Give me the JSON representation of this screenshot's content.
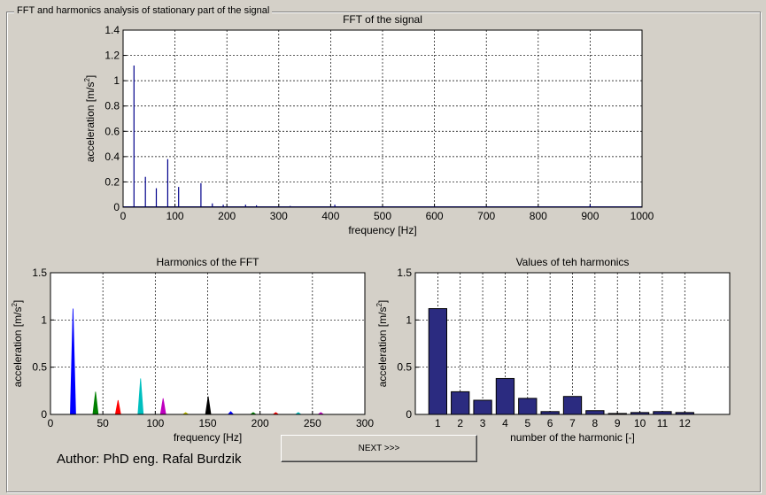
{
  "window": {
    "group_title": "FFT and harmonics analysis of stationary part of the signal",
    "author": "Author: PhD eng. Rafal Burdzik",
    "next_button": "NEXT >>>"
  },
  "chart_data": [
    {
      "type": "line",
      "title": "FFT of the signal",
      "xlabel": "frequency [Hz]",
      "ylabel": "acceleration [m/s",
      "ylabel_sup": "2",
      "ylabel_end": "]",
      "xlim": [
        0,
        1000
      ],
      "ylim": [
        0,
        1.4
      ],
      "xticks": [
        0,
        100,
        200,
        300,
        400,
        500,
        600,
        700,
        800,
        900,
        1000
      ],
      "yticks": [
        0,
        0.2,
        0.4,
        0.6,
        0.8,
        1,
        1.2,
        1.4
      ],
      "grid": true,
      "color": "#00008b",
      "peaks": [
        {
          "x": 21,
          "y": 1.12
        },
        {
          "x": 43,
          "y": 0.24
        },
        {
          "x": 64,
          "y": 0.15
        },
        {
          "x": 86,
          "y": 0.38
        },
        {
          "x": 107,
          "y": 0.16
        },
        {
          "x": 150,
          "y": 0.19
        },
        {
          "x": 172,
          "y": 0.03
        },
        {
          "x": 193,
          "y": 0.02
        },
        {
          "x": 236,
          "y": 0.02
        },
        {
          "x": 257,
          "y": 0.015
        },
        {
          "x": 322,
          "y": 0.01
        },
        {
          "x": 408,
          "y": 0.02
        },
        {
          "x": 900,
          "y": 0.02
        }
      ]
    },
    {
      "type": "line",
      "title": "Harmonics of the FFT",
      "xlabel": "frequency [Hz]",
      "ylabel": "acceleration [m/s",
      "ylabel_sup": "2",
      "ylabel_end": "]",
      "xlim": [
        0,
        300
      ],
      "ylim": [
        0,
        1.5
      ],
      "xticks": [
        0,
        50,
        100,
        150,
        200,
        250,
        300
      ],
      "yticks": [
        0,
        0.5,
        1,
        1.5
      ],
      "grid": true,
      "series": [
        {
          "x": 21.5,
          "y": 1.12,
          "color": "#0000ff"
        },
        {
          "x": 43,
          "y": 0.24,
          "color": "#008000"
        },
        {
          "x": 64.5,
          "y": 0.15,
          "color": "#ff0000"
        },
        {
          "x": 86,
          "y": 0.38,
          "color": "#00bfbf"
        },
        {
          "x": 107.5,
          "y": 0.17,
          "color": "#bf00bf"
        },
        {
          "x": 129,
          "y": 0.02,
          "color": "#bfbf00"
        },
        {
          "x": 150.5,
          "y": 0.19,
          "color": "#000000"
        },
        {
          "x": 172,
          "y": 0.03,
          "color": "#0000ff"
        },
        {
          "x": 193.5,
          "y": 0.02,
          "color": "#008000"
        },
        {
          "x": 215,
          "y": 0.02,
          "color": "#ff0000"
        },
        {
          "x": 236.5,
          "y": 0.02,
          "color": "#00bfbf"
        },
        {
          "x": 258,
          "y": 0.02,
          "color": "#bf00bf"
        }
      ]
    },
    {
      "type": "bar",
      "title": "Values of teh harmonics",
      "xlabel": "number of the harmonic [-]",
      "ylabel": "acceleration [m/s",
      "ylabel_sup": "2",
      "ylabel_end": "]",
      "categories": [
        "1",
        "2",
        "3",
        "4",
        "5",
        "6",
        "7",
        "8",
        "9",
        "10",
        "11",
        "12"
      ],
      "values": [
        1.12,
        0.24,
        0.15,
        0.38,
        0.17,
        0.03,
        0.19,
        0.04,
        0.01,
        0.02,
        0.03,
        0.02
      ],
      "xlim": [
        0,
        14
      ],
      "ylim": [
        0,
        1.5
      ],
      "yticks": [
        0,
        0.5,
        1,
        1.5
      ],
      "grid": true,
      "bar_color": "#2b2b80"
    }
  ]
}
